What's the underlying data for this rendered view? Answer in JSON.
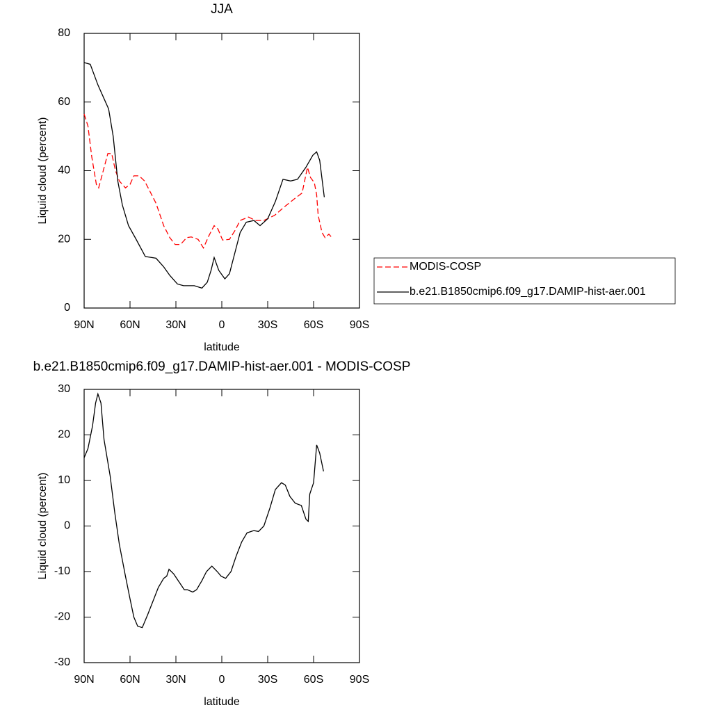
{
  "chart_data": [
    {
      "type": "line",
      "title": "JJA",
      "xlabel": "latitude",
      "ylabel": "Liquid cloud (percent)",
      "xlim": [
        90,
        -90
      ],
      "xticks": [
        {
          "value": 90,
          "label": "90N"
        },
        {
          "value": 60,
          "label": "60N"
        },
        {
          "value": 30,
          "label": "30N"
        },
        0,
        {
          "value": -30,
          "label": "30S"
        },
        {
          "value": -60,
          "label": "60S"
        },
        {
          "value": -90,
          "label": "90S"
        }
      ],
      "ylim": [
        0,
        80
      ],
      "yticks": [
        0,
        20,
        40,
        60,
        80
      ],
      "legend": "outside-right",
      "series": [
        {
          "name": "MODIS-COSP",
          "color": "#ff0000",
          "dashed": true,
          "x": [
            90,
            87.5,
            85,
            82,
            80.5,
            77.5,
            74.5,
            72,
            69.5,
            67,
            63,
            60,
            57.5,
            54,
            50.5,
            47,
            43,
            38,
            34,
            30.5,
            27,
            23,
            20,
            15.5,
            12,
            8.5,
            5,
            2.5,
            -0.5,
            -5,
            -8.5,
            -12,
            -17.5,
            -22,
            -27.5,
            -34.5,
            -41,
            -48,
            -52.5,
            -56,
            -58,
            -60.5,
            -62,
            -63,
            -65.5,
            -67.5,
            -70,
            -72
          ],
          "values": [
            56.5,
            53,
            44,
            36,
            35,
            40,
            45,
            45,
            40,
            37,
            35,
            36,
            38.5,
            38.5,
            37,
            34,
            30.5,
            24,
            20.5,
            18.5,
            18.5,
            20.5,
            20.7,
            20,
            17.5,
            21,
            24,
            23,
            19.8,
            20,
            22.5,
            25.5,
            26.5,
            25.5,
            25.5,
            27,
            29.5,
            32,
            33.5,
            41,
            38,
            36.5,
            33,
            27,
            22,
            20.5,
            21.5,
            20.5
          ]
        },
        {
          "name": "b.e21.B1850cmip6.f09_g17.DAMIP-hist-aer.001",
          "color": "#000000",
          "dashed": false,
          "x": [
            90,
            86,
            81,
            77,
            74,
            71,
            68,
            65,
            61,
            56,
            50,
            43,
            38,
            34,
            29,
            25,
            18,
            13,
            9.5,
            7,
            5,
            2,
            -2,
            -5,
            -8.5,
            -12,
            -16,
            -21,
            -25,
            -30,
            -35,
            -40,
            -45,
            -49.5,
            -55,
            -59.5,
            -62,
            -64,
            -67
          ],
          "values": [
            71.5,
            71,
            65,
            61,
            58,
            50,
            37,
            30,
            24,
            20,
            15,
            14.5,
            12,
            9.5,
            7,
            6.5,
            6.5,
            5.8,
            7.5,
            11,
            14.7,
            11,
            8.5,
            10,
            16,
            22,
            25,
            25.5,
            24,
            26,
            31,
            37.5,
            37,
            37.5,
            41,
            44.5,
            45.5,
            43,
            32.3
          ]
        }
      ]
    },
    {
      "type": "line",
      "title": "b.e21.B1850cmip6.f09_g17.DAMIP-hist-aer.001 - MODIS-COSP",
      "xlabel": "latitude",
      "ylabel": "Liquid cloud (percent)",
      "xlim": [
        90,
        -90
      ],
      "xticks": [
        {
          "value": 90,
          "label": "90N"
        },
        {
          "value": 60,
          "label": "60N"
        },
        {
          "value": 30,
          "label": "30N"
        },
        0,
        {
          "value": -30,
          "label": "30S"
        },
        {
          "value": -60,
          "label": "60S"
        },
        {
          "value": -90,
          "label": "90S"
        }
      ],
      "ylim": [
        -30,
        30
      ],
      "yticks": [
        -30,
        -20,
        -10,
        0,
        10,
        20,
        30
      ],
      "series": [
        {
          "color": "#000000",
          "dashed": false,
          "x": [
            90,
            87.5,
            84.5,
            82.5,
            81,
            79,
            77,
            73,
            70,
            67,
            63,
            60,
            57.5,
            55,
            52,
            48.5,
            45,
            41.5,
            38,
            36,
            34.5,
            31.5,
            27.5,
            24.5,
            22.5,
            19,
            16.5,
            13,
            10,
            6.5,
            3,
            0.5,
            -2.5,
            -6,
            -9.5,
            -13,
            -16.5,
            -21,
            -24,
            -27.5,
            -31.5,
            -35,
            -39,
            -41.5,
            -44.5,
            -48,
            -52,
            -55,
            -56.5,
            -57.5,
            -60,
            -62,
            -64,
            -66.5
          ],
          "values": [
            15,
            17,
            22,
            27,
            29,
            27,
            19,
            11,
            3,
            -4,
            -11,
            -16,
            -20,
            -22,
            -22.3,
            -19.5,
            -16.5,
            -13.5,
            -11.5,
            -11,
            -9.5,
            -10.5,
            -12.5,
            -14,
            -14,
            -14.5,
            -14,
            -12,
            -10,
            -8.8,
            -10,
            -11,
            -11.5,
            -10,
            -6.5,
            -3.5,
            -1.5,
            -1,
            -1.2,
            0,
            4,
            8,
            9.5,
            9,
            6.5,
            5,
            4.5,
            1.5,
            1,
            7,
            9.5,
            17.8,
            16,
            12
          ]
        }
      ]
    }
  ]
}
